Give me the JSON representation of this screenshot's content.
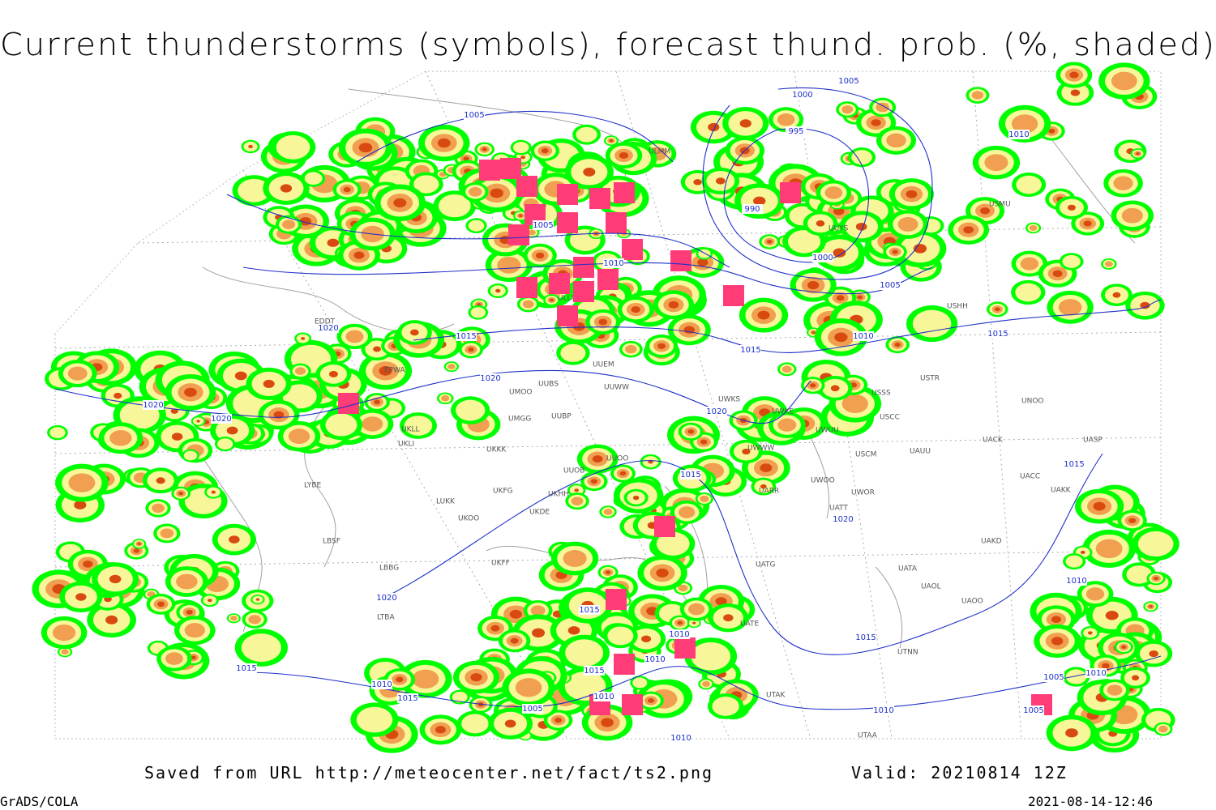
{
  "title": "Current thunderstorms (symbols), forecast thund. prob. (%, shaded)",
  "footer": {
    "source": "Saved from URL http://meteocenter.net/fact/ts2.png",
    "valid": "Valid: 20210814 12Z",
    "software": "GrADS/COLA",
    "timestamp": "2021-08-14-12:46"
  },
  "isobar_labels": [
    1005,
    1000,
    1005,
    995,
    990,
    1005,
    1010,
    1000,
    1005,
    1010,
    1015,
    1010,
    1015,
    1015,
    1020,
    1020,
    1020,
    1020,
    1020,
    1015,
    1020,
    1010,
    1015,
    1015,
    1010,
    1010,
    1015,
    1010,
    1005,
    1010,
    1015,
    1015,
    1020,
    1015,
    1010,
    1005,
    1010,
    1005,
    1010
  ],
  "stations": [
    "ULMM",
    "USMU",
    "UUYS",
    "USHH",
    "USTR",
    "USSS",
    "USCC",
    "UNOO",
    "UACK",
    "UASP",
    "UACC",
    "UAKK",
    "UAKD",
    "UATA",
    "UAOL",
    "UAOO",
    "UTNN",
    "UTAK",
    "UTAA",
    "UATG",
    "UATE",
    "UARR",
    "USCM",
    "UAUU",
    "UWOO",
    "UWOR",
    "UATT",
    "UWWW",
    "UWKE",
    "UWKS",
    "UWUU",
    "UUWW",
    "UUEM",
    "UUBS",
    "UMOO",
    "UMGG",
    "UUBP",
    "UKKK",
    "UUOO",
    "UUOB",
    "UKHH",
    "UKFG",
    "UKDE",
    "UKOO",
    "LUKK",
    "LYBE",
    "LBSF",
    "LBBG",
    "LTBA",
    "UKFF",
    "EPWA",
    "UKLL",
    "UKLI",
    "EDDT",
    "ULLI"
  ]
}
